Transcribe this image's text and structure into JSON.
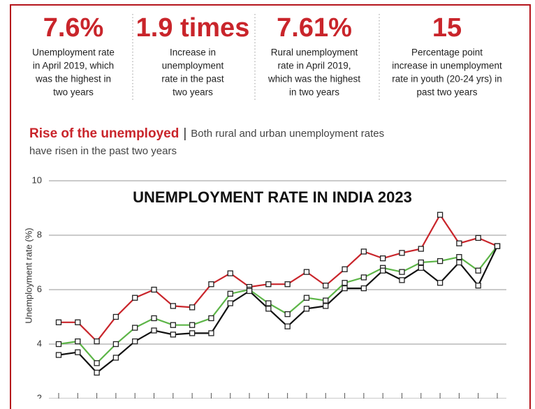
{
  "stats": [
    {
      "value": "7.6%",
      "lines": [
        "Unemployment rate",
        "in April 2019, which",
        "was the highest in",
        "two years"
      ]
    },
    {
      "value": "1.9 times",
      "lines": [
        "Increase in",
        "unemployment",
        "rate in the past",
        "two years"
      ]
    },
    {
      "value": "7.61%",
      "lines": [
        "Rural unemployment",
        "rate in April 2019,",
        "which was the highest",
        "in two years"
      ]
    },
    {
      "value": "15",
      "lines": [
        "Percentage point",
        "increase in unemployment",
        "rate in youth (20-24 yrs) in",
        "past two years"
      ]
    }
  ],
  "heading": {
    "title": "Rise of the unemployed",
    "separator": "|",
    "subtitle_lines": [
      "Both rural and urban unemployment rates",
      "have risen in the past two years"
    ]
  },
  "chart_data": {
    "type": "line",
    "title": "UNEMPLOYMENT RATE IN INDIA 2023",
    "y_label": "Unemployment rate (%)",
    "categories": [
      null,
      null,
      null,
      null,
      null,
      null,
      null,
      null,
      null,
      null,
      null,
      null,
      null,
      null,
      null,
      null,
      null,
      null,
      null,
      null,
      null,
      null,
      null,
      null
    ],
    "series": [
      {
        "color": "#c9252b",
        "values": [
          4.8,
          4.8,
          4.1,
          5.0,
          5.7,
          6.0,
          5.4,
          5.35,
          6.2,
          6.6,
          6.1,
          6.2,
          6.2,
          6.65,
          6.15,
          6.75,
          7.4,
          7.15,
          7.35,
          7.5,
          8.75,
          7.7,
          7.9,
          7.6
        ]
      },
      {
        "color": "#5db548",
        "values": [
          4.0,
          4.1,
          3.3,
          4.0,
          4.6,
          4.95,
          4.7,
          4.7,
          4.95,
          5.85,
          6.0,
          5.5,
          5.1,
          5.7,
          5.6,
          6.25,
          6.45,
          6.8,
          6.65,
          7.0,
          7.05,
          7.2,
          6.7,
          7.6
        ]
      },
      {
        "color": "#111111",
        "values": [
          3.6,
          3.7,
          2.95,
          3.5,
          4.1,
          4.5,
          4.35,
          4.4,
          4.4,
          5.5,
          5.95,
          5.3,
          4.65,
          5.3,
          5.4,
          6.05,
          6.05,
          6.7,
          6.35,
          6.8,
          6.25,
          7.0,
          6.15,
          7.6
        ]
      }
    ],
    "ylim": [
      2,
      10
    ],
    "yticks": [
      2,
      4,
      6,
      8,
      10
    ],
    "grid": true
  }
}
